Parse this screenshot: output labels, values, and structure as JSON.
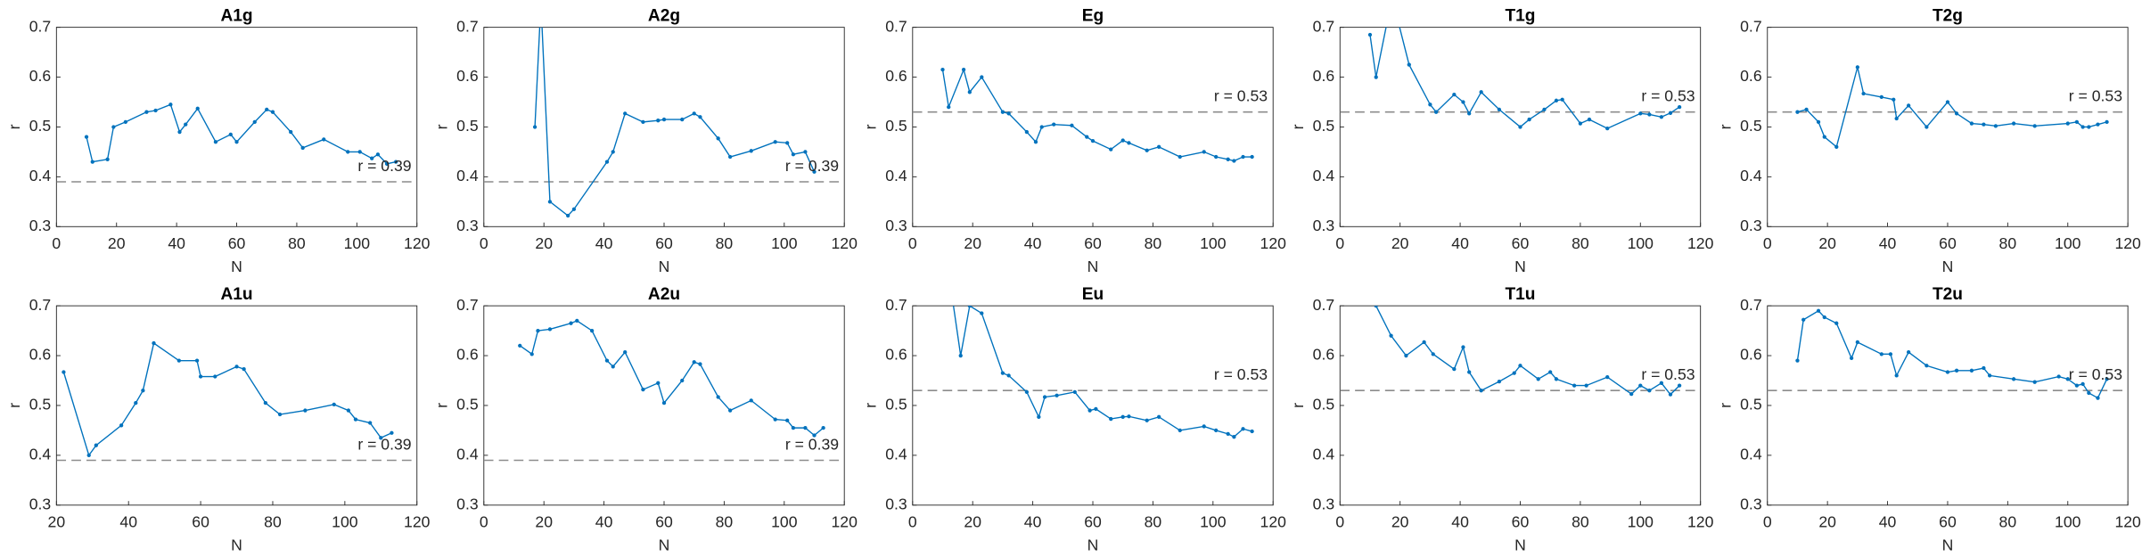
{
  "chart_data": [
    {
      "type": "line",
      "title": "A1g",
      "xlabel": "N",
      "ylabel": "r",
      "color": "#0072bd",
      "xlim": [
        0,
        120
      ],
      "ylim": [
        0.3,
        0.7
      ],
      "xticks": [
        0,
        20,
        40,
        60,
        80,
        100,
        120
      ],
      "yticks": [
        0.3,
        0.4,
        0.5,
        0.6,
        0.7
      ],
      "reference": {
        "value": 0.39,
        "label": "r = 0.39"
      },
      "x": [
        10,
        12,
        17,
        19,
        23,
        30,
        33,
        38,
        41,
        43,
        47,
        53,
        58,
        60,
        66,
        70,
        72,
        78,
        82,
        89,
        97,
        101,
        105,
        107,
        110,
        113
      ],
      "values": [
        0.48,
        0.43,
        0.435,
        0.5,
        0.51,
        0.53,
        0.533,
        0.545,
        0.49,
        0.505,
        0.537,
        0.47,
        0.485,
        0.47,
        0.51,
        0.535,
        0.53,
        0.49,
        0.458,
        0.475,
        0.45,
        0.45,
        0.437,
        0.445,
        0.426,
        0.43
      ]
    },
    {
      "type": "line",
      "title": "A2g",
      "xlabel": "N",
      "ylabel": "r",
      "color": "#0072bd",
      "xlim": [
        0,
        120
      ],
      "ylim": [
        0.3,
        0.7
      ],
      "xticks": [
        0,
        20,
        40,
        60,
        80,
        100,
        120
      ],
      "yticks": [
        0.3,
        0.4,
        0.5,
        0.6,
        0.7
      ],
      "reference": {
        "value": 0.39,
        "label": "r = 0.39"
      },
      "x": [
        17,
        19,
        22,
        28,
        30,
        41,
        43,
        47,
        53,
        58,
        60,
        66,
        70,
        72,
        78,
        82,
        89,
        97,
        101,
        103,
        107,
        110
      ],
      "values": [
        0.5,
        0.75,
        0.35,
        0.322,
        0.335,
        0.43,
        0.45,
        0.527,
        0.51,
        0.513,
        0.515,
        0.515,
        0.527,
        0.52,
        0.477,
        0.44,
        0.452,
        0.47,
        0.468,
        0.445,
        0.45,
        0.41
      ]
    },
    {
      "type": "line",
      "title": "Eg",
      "xlabel": "N",
      "ylabel": "r",
      "color": "#0072bd",
      "xlim": [
        0,
        120
      ],
      "ylim": [
        0.3,
        0.7
      ],
      "xticks": [
        0,
        20,
        40,
        60,
        80,
        100,
        120
      ],
      "yticks": [
        0.3,
        0.4,
        0.5,
        0.6,
        0.7
      ],
      "reference": {
        "value": 0.53,
        "label": "r = 0.53"
      },
      "x": [
        10,
        12,
        17,
        19,
        23,
        30,
        32,
        38,
        41,
        43,
        47,
        53,
        58,
        60,
        66,
        70,
        72,
        78,
        82,
        89,
        97,
        101,
        105,
        107,
        110,
        113
      ],
      "values": [
        0.615,
        0.54,
        0.615,
        0.57,
        0.6,
        0.53,
        0.527,
        0.49,
        0.47,
        0.5,
        0.505,
        0.503,
        0.48,
        0.472,
        0.455,
        0.473,
        0.468,
        0.453,
        0.46,
        0.44,
        0.45,
        0.44,
        0.435,
        0.432,
        0.44,
        0.44
      ]
    },
    {
      "type": "line",
      "title": "T1g",
      "xlabel": "N",
      "ylabel": "r",
      "color": "#0072bd",
      "xlim": [
        0,
        120
      ],
      "ylim": [
        0.3,
        0.7
      ],
      "xticks": [
        0,
        20,
        40,
        60,
        80,
        100,
        120
      ],
      "yticks": [
        0.3,
        0.4,
        0.5,
        0.6,
        0.7
      ],
      "reference": {
        "value": 0.53,
        "label": "r = 0.53"
      },
      "x": [
        10,
        12,
        17,
        19,
        23,
        30,
        32,
        38,
        41,
        43,
        47,
        53,
        60,
        63,
        68,
        72,
        74,
        80,
        83,
        89,
        100,
        103,
        107,
        110,
        113
      ],
      "values": [
        0.685,
        0.6,
        0.75,
        0.72,
        0.625,
        0.545,
        0.53,
        0.565,
        0.55,
        0.527,
        0.57,
        0.535,
        0.5,
        0.515,
        0.535,
        0.553,
        0.555,
        0.507,
        0.515,
        0.497,
        0.527,
        0.525,
        0.52,
        0.528,
        0.54
      ]
    },
    {
      "type": "line",
      "title": "T2g",
      "xlabel": "N",
      "ylabel": "r",
      "color": "#0072bd",
      "xlim": [
        0,
        120
      ],
      "ylim": [
        0.3,
        0.7
      ],
      "xticks": [
        0,
        20,
        40,
        60,
        80,
        100,
        120
      ],
      "yticks": [
        0.3,
        0.4,
        0.5,
        0.6,
        0.7
      ],
      "reference": {
        "value": 0.53,
        "label": "r = 0.53"
      },
      "x": [
        10,
        13,
        17,
        19,
        23,
        30,
        32,
        38,
        42,
        43,
        47,
        53,
        60,
        63,
        68,
        72,
        76,
        82,
        89,
        100,
        103,
        105,
        107,
        110,
        113
      ],
      "values": [
        0.53,
        0.535,
        0.51,
        0.48,
        0.46,
        0.62,
        0.567,
        0.56,
        0.555,
        0.517,
        0.543,
        0.5,
        0.55,
        0.527,
        0.507,
        0.505,
        0.502,
        0.507,
        0.502,
        0.507,
        0.51,
        0.5,
        0.5,
        0.505,
        0.51
      ]
    },
    {
      "type": "line",
      "title": "A1u",
      "xlabel": "N",
      "ylabel": "r",
      "color": "#0072bd",
      "xlim": [
        20,
        120
      ],
      "ylim": [
        0.3,
        0.7
      ],
      "xticks": [
        20,
        40,
        60,
        80,
        100,
        120
      ],
      "yticks": [
        0.3,
        0.4,
        0.5,
        0.6,
        0.7
      ],
      "reference": {
        "value": 0.39,
        "label": "r = 0.39"
      },
      "x": [
        22,
        29,
        31,
        38,
        42,
        44,
        47,
        54,
        59,
        60,
        64,
        70,
        72,
        78,
        82,
        89,
        97,
        101,
        103,
        107,
        110,
        113
      ],
      "values": [
        0.567,
        0.4,
        0.42,
        0.46,
        0.505,
        0.53,
        0.625,
        0.59,
        0.59,
        0.558,
        0.558,
        0.578,
        0.573,
        0.505,
        0.482,
        0.49,
        0.502,
        0.49,
        0.472,
        0.465,
        0.435,
        0.445
      ]
    },
    {
      "type": "line",
      "title": "A2u",
      "xlabel": "N",
      "ylabel": "r",
      "color": "#0072bd",
      "xlim": [
        0,
        120
      ],
      "ylim": [
        0.3,
        0.7
      ],
      "xticks": [
        0,
        20,
        40,
        60,
        80,
        100,
        120
      ],
      "yticks": [
        0.3,
        0.4,
        0.5,
        0.6,
        0.7
      ],
      "reference": {
        "value": 0.39,
        "label": "r = 0.39"
      },
      "x": [
        12,
        16,
        18,
        22,
        29,
        31,
        36,
        41,
        43,
        47,
        53,
        58,
        60,
        66,
        70,
        72,
        78,
        82,
        89,
        97,
        101,
        103,
        107,
        110,
        113
      ],
      "values": [
        0.62,
        0.603,
        0.65,
        0.653,
        0.665,
        0.67,
        0.65,
        0.59,
        0.578,
        0.607,
        0.532,
        0.545,
        0.505,
        0.55,
        0.587,
        0.583,
        0.517,
        0.49,
        0.51,
        0.472,
        0.47,
        0.455,
        0.455,
        0.44,
        0.455
      ]
    },
    {
      "type": "line",
      "title": "Eu",
      "xlabel": "N",
      "ylabel": "r",
      "color": "#0072bd",
      "xlim": [
        0,
        120
      ],
      "ylim": [
        0.3,
        0.7
      ],
      "xticks": [
        0,
        20,
        40,
        60,
        80,
        100,
        120
      ],
      "yticks": [
        0.3,
        0.4,
        0.5,
        0.6,
        0.7
      ],
      "reference": {
        "value": 0.53,
        "label": "r = 0.53"
      },
      "x": [
        10,
        16,
        19,
        23,
        30,
        32,
        38,
        42,
        44,
        48,
        54,
        59,
        61,
        66,
        70,
        72,
        78,
        82,
        89,
        97,
        101,
        105,
        107,
        110,
        113
      ],
      "values": [
        0.85,
        0.6,
        0.7,
        0.685,
        0.565,
        0.56,
        0.527,
        0.477,
        0.517,
        0.52,
        0.527,
        0.49,
        0.493,
        0.473,
        0.477,
        0.478,
        0.47,
        0.477,
        0.45,
        0.458,
        0.45,
        0.443,
        0.437,
        0.453,
        0.448
      ]
    },
    {
      "type": "line",
      "title": "T1u",
      "xlabel": "N",
      "ylabel": "r",
      "color": "#0072bd",
      "xlim": [
        0,
        120
      ],
      "ylim": [
        0.3,
        0.7
      ],
      "xticks": [
        0,
        20,
        40,
        60,
        80,
        100,
        120
      ],
      "yticks": [
        0.3,
        0.4,
        0.5,
        0.6,
        0.7
      ],
      "reference": {
        "value": 0.53,
        "label": "r = 0.53"
      },
      "x": [
        12,
        17,
        22,
        28,
        31,
        38,
        41,
        43,
        47,
        53,
        58,
        60,
        66,
        70,
        72,
        78,
        82,
        89,
        97,
        100,
        103,
        107,
        110,
        113
      ],
      "values": [
        0.7,
        0.64,
        0.6,
        0.627,
        0.603,
        0.573,
        0.617,
        0.567,
        0.53,
        0.548,
        0.565,
        0.58,
        0.553,
        0.567,
        0.553,
        0.54,
        0.54,
        0.557,
        0.523,
        0.54,
        0.53,
        0.545,
        0.522,
        0.54
      ]
    },
    {
      "type": "line",
      "title": "T2u",
      "xlabel": "N",
      "ylabel": "r",
      "color": "#0072bd",
      "xlim": [
        0,
        120
      ],
      "ylim": [
        0.3,
        0.7
      ],
      "xticks": [
        0,
        20,
        40,
        60,
        80,
        100,
        120
      ],
      "yticks": [
        0.3,
        0.4,
        0.5,
        0.6,
        0.7
      ],
      "reference": {
        "value": 0.53,
        "label": "r = 0.53"
      },
      "x": [
        10,
        12,
        17,
        19,
        23,
        28,
        30,
        38,
        41,
        43,
        47,
        53,
        60,
        63,
        68,
        72,
        74,
        82,
        89,
        97,
        100,
        103,
        105,
        107,
        110,
        113
      ],
      "values": [
        0.59,
        0.672,
        0.69,
        0.677,
        0.665,
        0.595,
        0.627,
        0.603,
        0.603,
        0.56,
        0.607,
        0.58,
        0.567,
        0.57,
        0.57,
        0.575,
        0.56,
        0.553,
        0.547,
        0.558,
        0.553,
        0.54,
        0.543,
        0.525,
        0.515,
        0.553
      ]
    }
  ]
}
